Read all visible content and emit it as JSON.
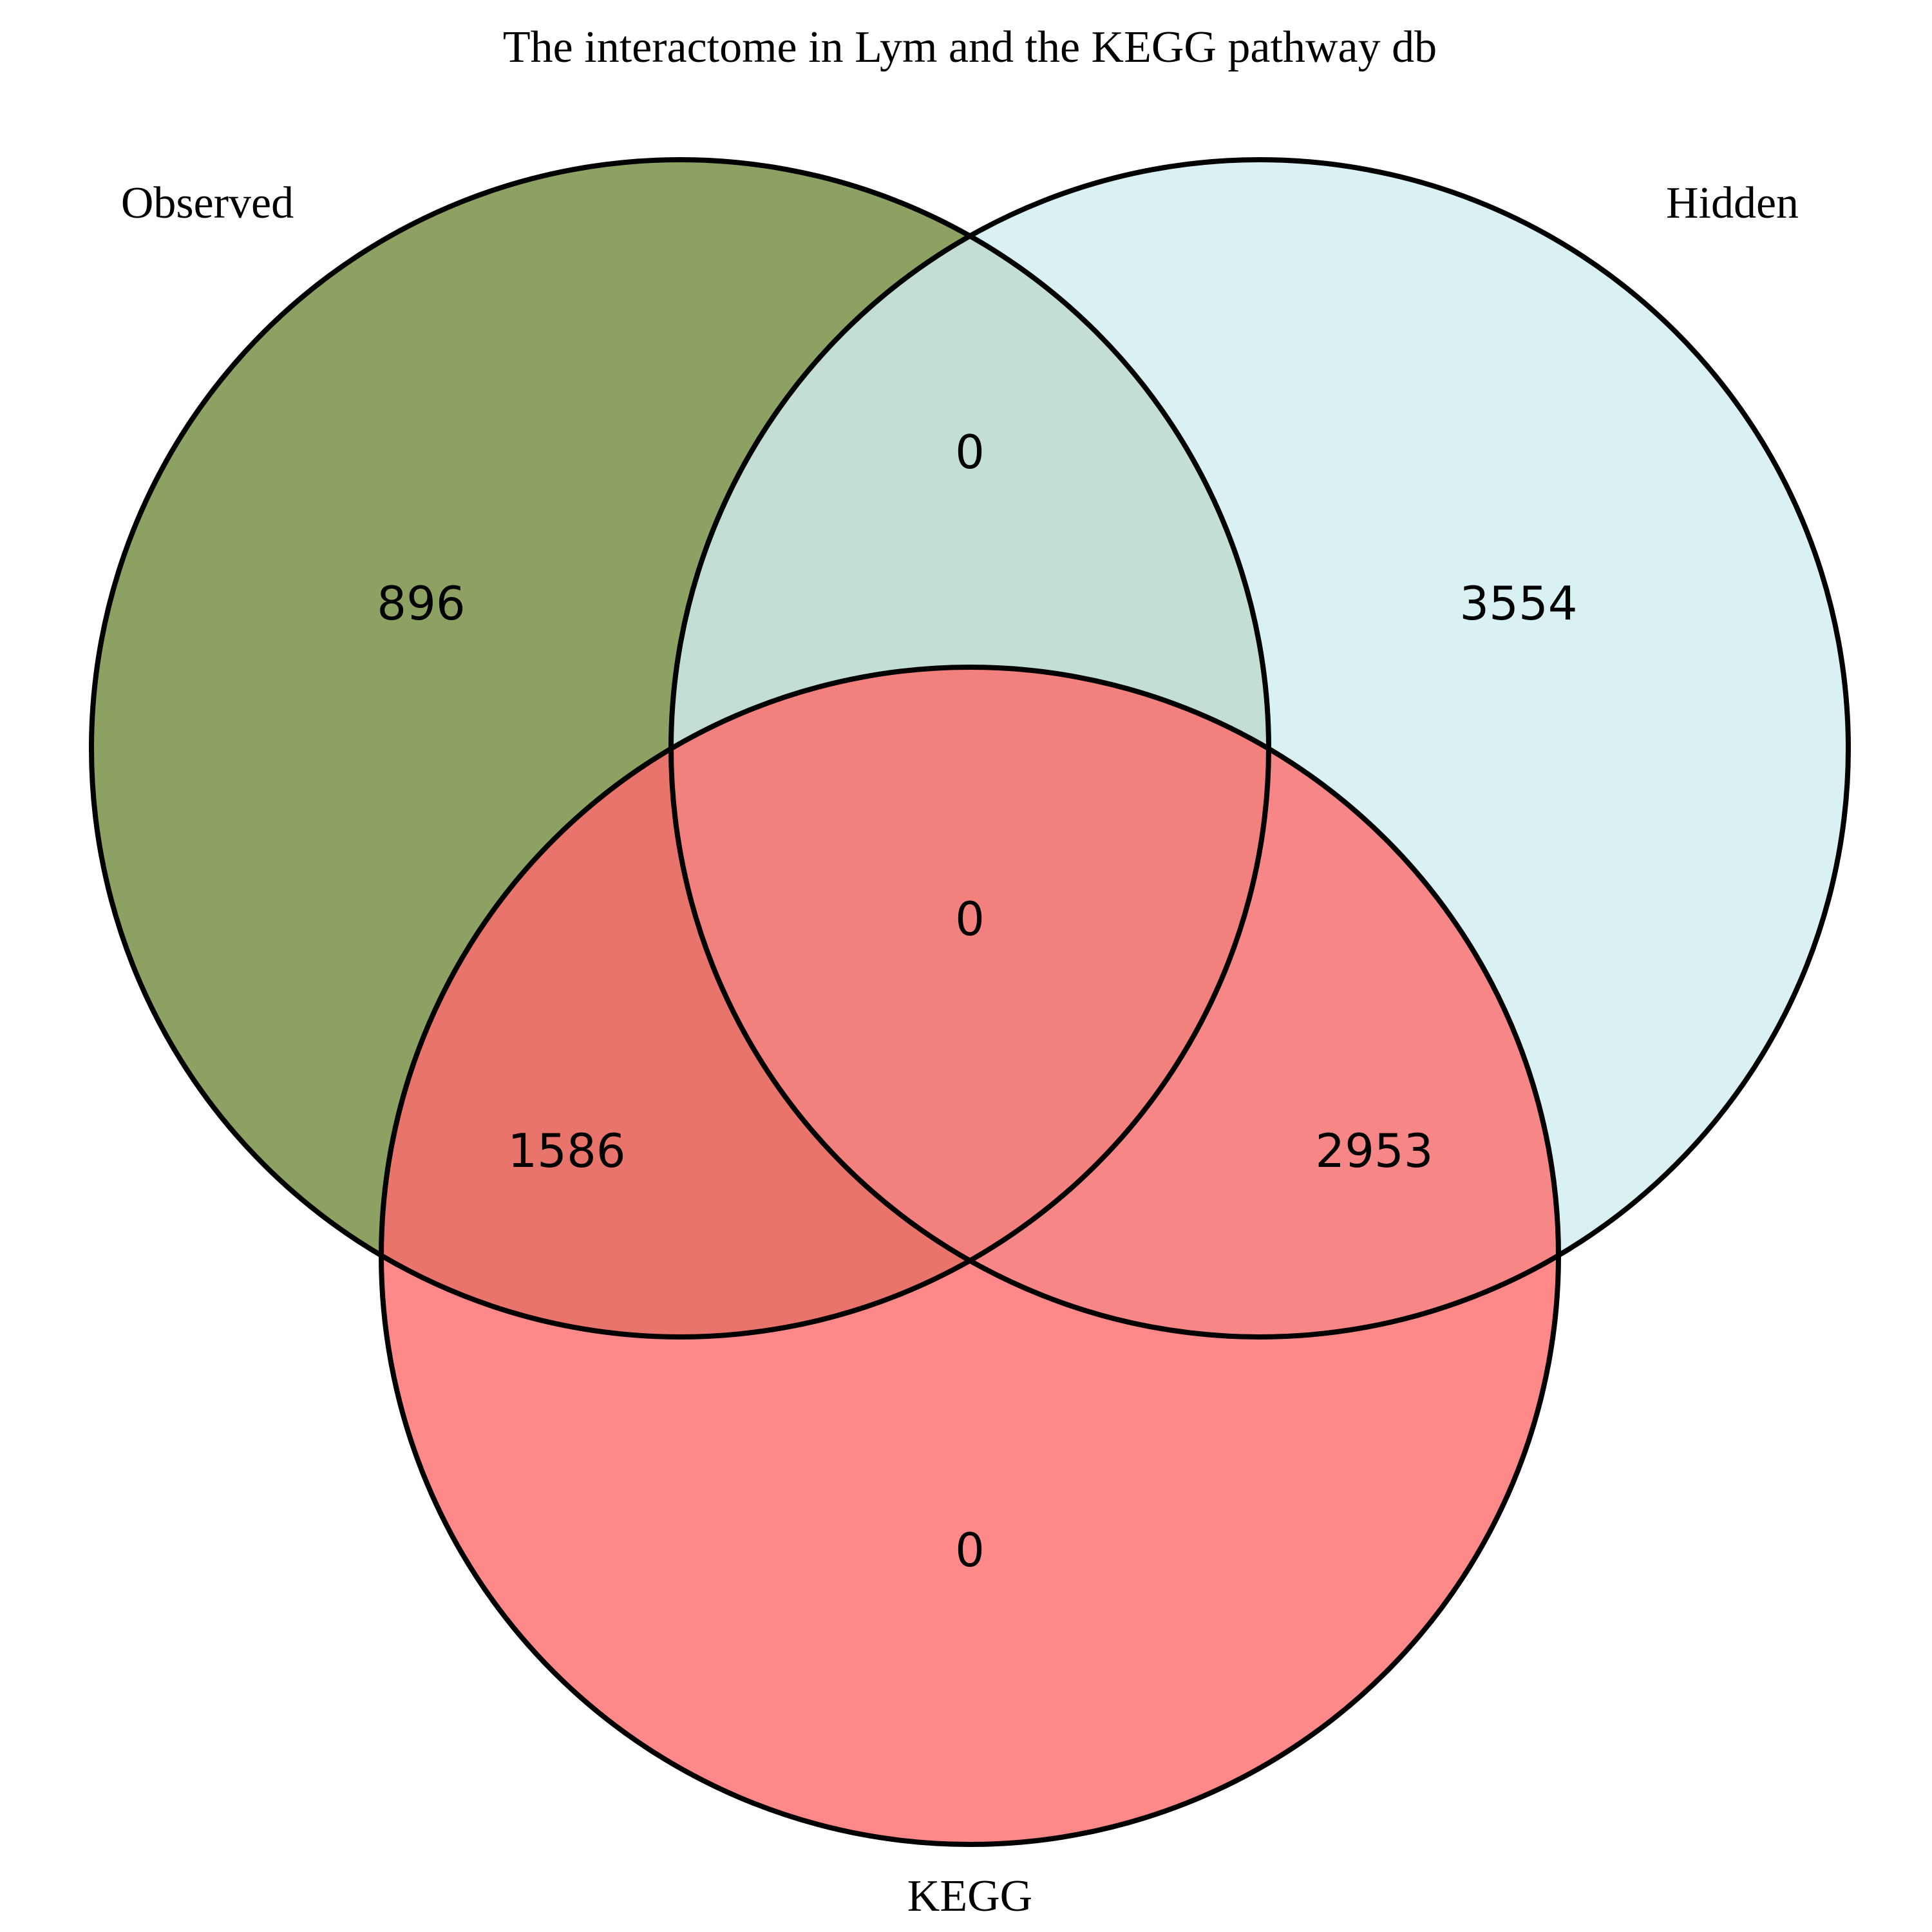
{
  "title": "The interactome in Lym and the KEGG pathway db",
  "chart_data": {
    "type": "venn",
    "title": "The interactome in Lym and the KEGG pathway db",
    "sets": [
      {
        "name": "Observed",
        "color": "#8da262"
      },
      {
        "name": "Hidden",
        "color": "#d9f1f2"
      },
      {
        "name": "KEGG",
        "color": "#ff8888"
      }
    ],
    "regions": {
      "observed_only": 896,
      "hidden_only": 3554,
      "kegg_only": 0,
      "observed_hidden": 0,
      "observed_kegg": 1586,
      "hidden_kegg": 2953,
      "all_three": 0
    },
    "region_colors": {
      "observed_hidden": "#c3dfd5",
      "observed_kegg": "#e8746b",
      "hidden_kegg": "#f78787",
      "all_three": "#f2817d"
    }
  }
}
